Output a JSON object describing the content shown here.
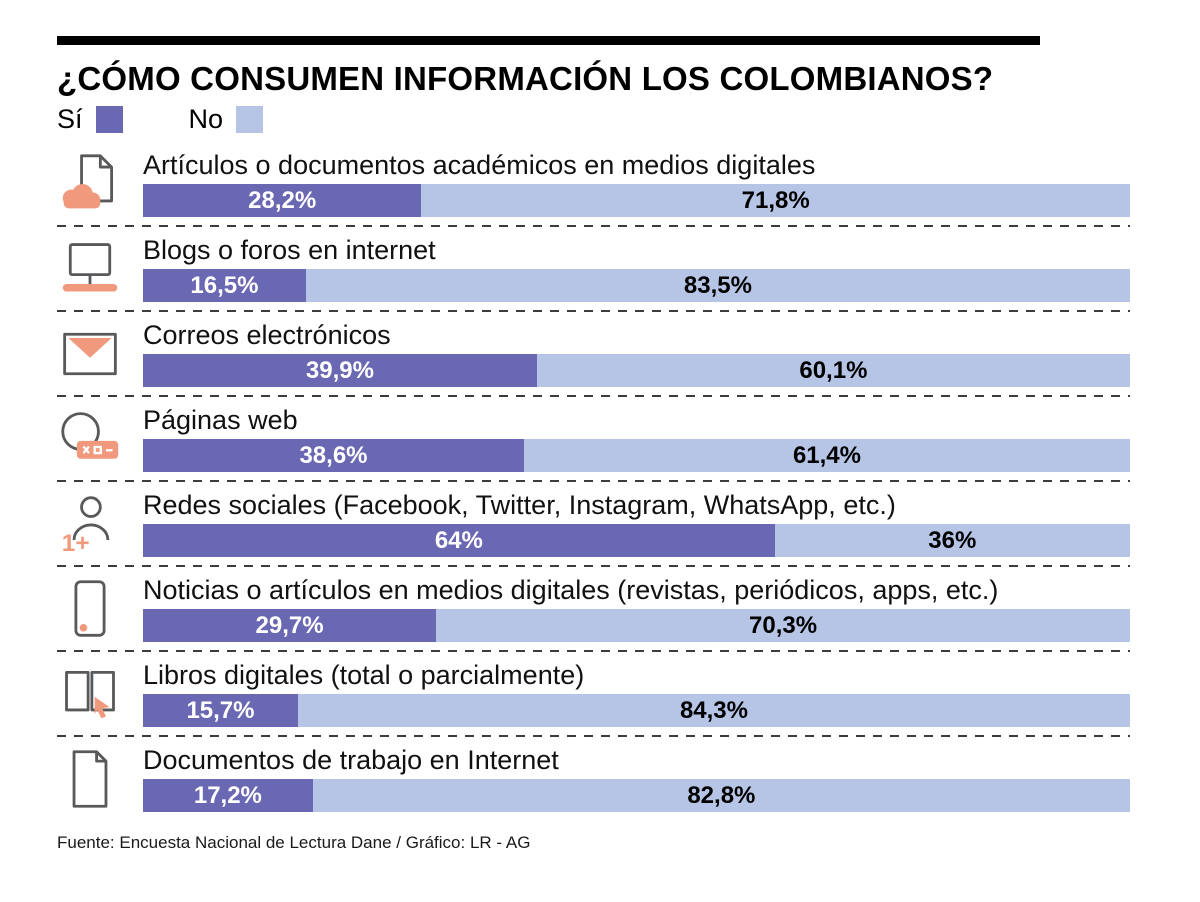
{
  "title": "¿CÓMO CONSUMEN INFORMACIÓN LOS COLOMBIANOS?",
  "legend": {
    "yes_label": "Sí",
    "no_label": "No"
  },
  "colors": {
    "yes": "#6b68b3",
    "no": "#b6c5e6",
    "accent": "#f0997c",
    "rule": "#000000"
  },
  "source": "Fuente: Encuesta Nacional de Lectura Dane / Gráfico: LR - AG",
  "chart_data": {
    "type": "bar",
    "orientation": "horizontal-stacked",
    "unit": "%",
    "title": "¿CÓMO CONSUMEN INFORMACIÓN LOS COLOMBIANOS?",
    "legend_entries": [
      "Sí",
      "No"
    ],
    "legend_position": "top-left",
    "categories": [
      "Artículos o documentos académicos en medios digitales",
      "Blogs o foros en internet",
      "Correos electrónicos",
      "Páginas web",
      "Redes sociales (Facebook, Twitter, Instagram, WhatsApp, etc.)",
      "Noticias o artículos en medios digitales (revistas, periódicos, apps, etc.)",
      "Libros digitales (total o parcialmente)",
      "Documentos de trabajo en Internet"
    ],
    "icons": [
      "document-cloud-icon",
      "monitor-icon",
      "envelope-icon",
      "web-window-icon",
      "person-add-icon",
      "smartphone-icon",
      "open-book-cursor-icon",
      "document-icon"
    ],
    "series": [
      {
        "name": "Sí",
        "values": [
          28.2,
          16.5,
          39.9,
          38.6,
          64,
          29.7,
          15.7,
          17.2
        ],
        "labels": [
          "28,2%",
          "16,5%",
          "39,9%",
          "38,6%",
          "64%",
          "29,7%",
          "15,7%",
          "17,2%"
        ]
      },
      {
        "name": "No",
        "values": [
          71.8,
          83.5,
          60.1,
          61.4,
          36,
          70.3,
          84.3,
          82.8
        ],
        "labels": [
          "71,8%",
          "83,5%",
          "60,1%",
          "61,4%",
          "36%",
          "70,3%",
          "84,3%",
          "82,8%"
        ]
      }
    ]
  }
}
